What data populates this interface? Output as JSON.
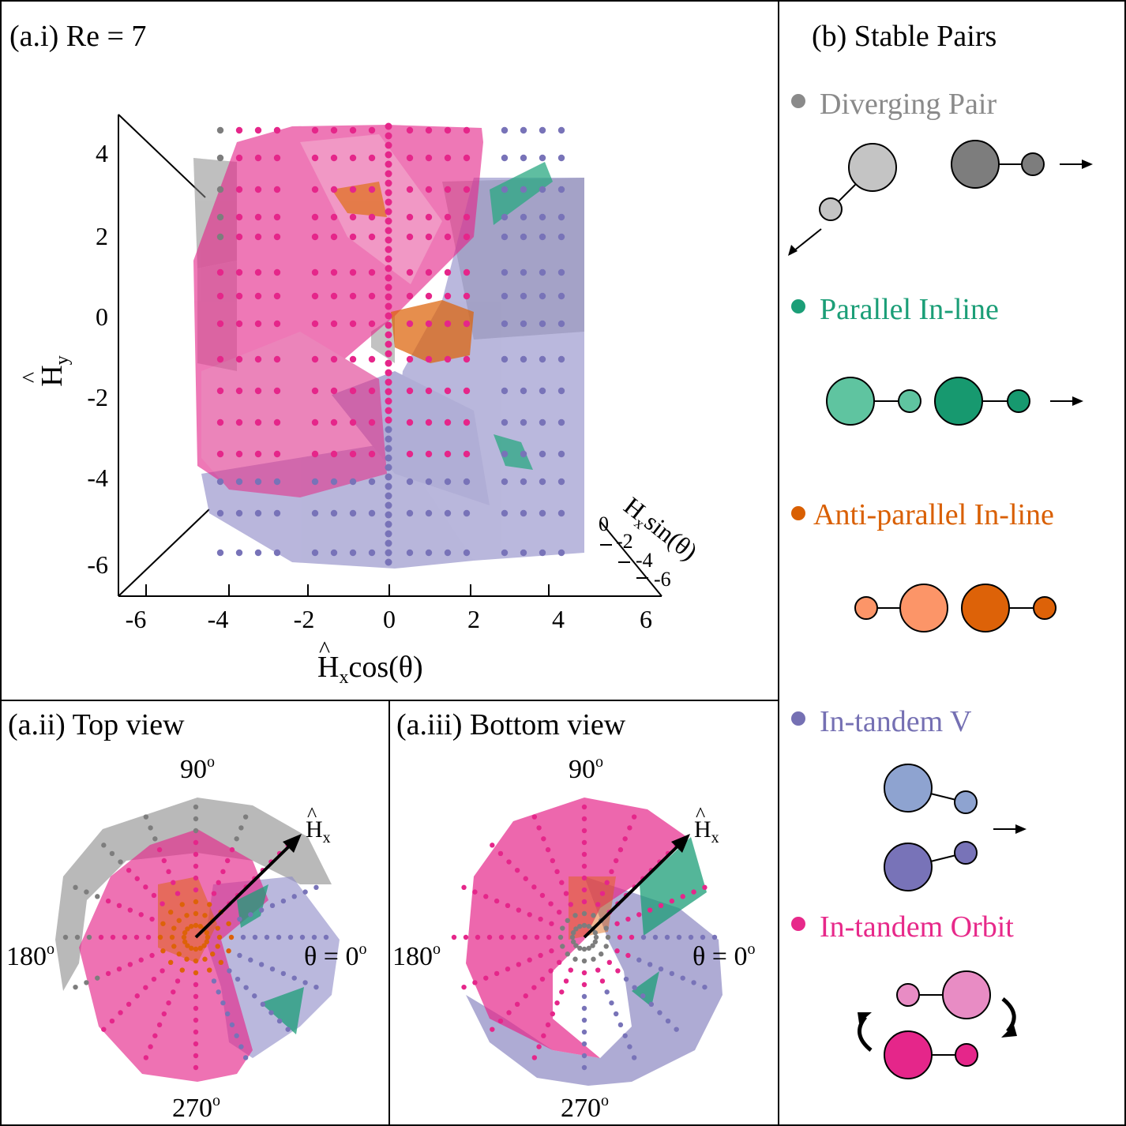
{
  "panels": {
    "a1_title": "(a.i) Re = 7",
    "a2_title": "(a.ii) Top view",
    "a3_title": "(a.iii) Bottom view",
    "b_title": "(b) Stable Pairs"
  },
  "axes3d": {
    "y_label_main": "H",
    "y_label_sub": "y",
    "x_label_main": "H",
    "x_label_sub": "x",
    "x_label_tail": "cos(θ)",
    "z_label_main": "H",
    "z_label_sub": "x",
    "z_label_tail": "sin(θ)",
    "y_ticks": [
      "4",
      "2",
      "0",
      "-2",
      "-4",
      "-6"
    ],
    "x_ticks": [
      "-6",
      "-4",
      "-2",
      "0",
      "2",
      "4",
      "6"
    ],
    "z_ticks": [
      "0",
      "-2",
      "-4",
      "-6"
    ]
  },
  "polar": {
    "top_label": "90",
    "bottom_label": "270",
    "left_label": "180",
    "right_label": "θ = 0",
    "degree_mark": "o",
    "arrow_main": "H",
    "arrow_sub": "x"
  },
  "legend": [
    {
      "name": "Diverging Pair",
      "color": "#8a8a8a"
    },
    {
      "name": "Parallel In-line",
      "color": "#1b9e77"
    },
    {
      "name": "Anti-parallel In-line",
      "color": "#d95f02"
    },
    {
      "name": "In-tandem V",
      "color": "#7570b3"
    },
    {
      "name": "In-tandem Orbit",
      "color": "#e7298a"
    }
  ],
  "colors": {
    "gray_light": "#c4c4c4",
    "gray_dark": "#7d7d7d",
    "green_light": "#5fc4a0",
    "green_dark": "#17996f",
    "orange_light": "#fc9568",
    "orange_dark": "#dd6208",
    "purple_light": "#8ea3d0",
    "purple_dark": "#7873b8",
    "pink_light": "#e88cc4",
    "pink_dark": "#e5268a"
  }
}
